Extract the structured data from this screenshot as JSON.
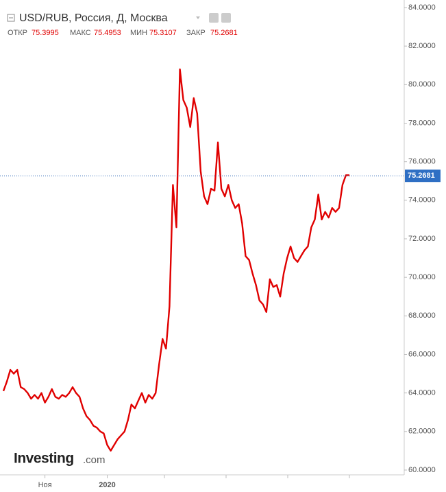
{
  "header": {
    "title": "USD/RUB, Россия, Д, Москва",
    "open_label": "ОТКР",
    "open": "75.3995",
    "high_label": "МАКС",
    "high": "75.4953",
    "low_label": "МИН",
    "low": "75.3107",
    "close_label": "ЗАКР",
    "close": "75.2681"
  },
  "logo": {
    "brand": "Investing",
    "suffix": ".com"
  },
  "chart_data": {
    "type": "line",
    "categories": [
      null,
      null,
      null,
      null,
      null,
      null,
      null,
      null,
      null,
      null,
      null,
      null,
      "Ноя",
      null,
      null,
      null,
      null,
      null,
      null,
      null,
      null,
      null,
      null,
      null,
      null,
      null,
      null,
      null,
      null,
      null,
      "2020",
      null,
      null,
      null,
      null,
      null,
      null,
      null,
      null,
      null,
      null,
      null,
      null,
      null,
      null,
      null,
      null,
      null,
      null,
      null,
      null,
      null,
      null,
      null,
      null,
      null,
      null,
      null,
      null,
      null,
      null,
      null,
      null,
      null,
      null,
      null,
      null,
      null,
      null,
      null,
      null,
      null,
      null,
      null,
      null,
      null,
      null,
      null,
      null,
      null,
      null,
      null,
      null,
      null,
      null,
      null,
      null,
      null,
      null,
      null,
      null,
      null,
      null,
      null,
      null,
      null,
      null,
      null,
      null,
      null,
      null
    ],
    "series": [
      {
        "name": "USD/RUB",
        "color": "#e00000",
        "values": [
          64.1,
          64.6,
          65.2,
          65.0,
          65.2,
          64.3,
          64.2,
          64.0,
          63.7,
          63.9,
          63.7,
          64.0,
          63.5,
          63.8,
          64.2,
          63.8,
          63.7,
          63.9,
          63.8,
          64.0,
          64.3,
          64.0,
          63.8,
          63.2,
          62.8,
          62.6,
          62.3,
          62.2,
          62.0,
          61.9,
          61.3,
          61.0,
          61.3,
          61.6,
          61.8,
          62.0,
          62.6,
          63.4,
          63.2,
          63.6,
          64.0,
          63.5,
          63.9,
          63.7,
          64.0,
          65.5,
          66.8,
          66.3,
          68.5,
          74.8,
          72.6,
          80.8,
          79.2,
          78.8,
          77.8,
          79.3,
          78.5,
          75.5,
          74.2,
          73.8,
          74.6,
          74.5,
          77.0,
          74.6,
          74.2,
          74.8,
          74.0,
          73.6,
          73.8,
          72.8,
          71.1,
          70.9,
          70.2,
          69.6,
          68.8,
          68.6,
          68.2,
          69.9,
          69.5,
          69.6,
          69.0,
          70.2,
          71.0,
          71.6,
          71.0,
          70.8,
          71.1,
          71.4,
          71.6,
          72.6,
          73.0,
          74.3,
          73.0,
          73.4,
          73.1,
          73.6,
          73.4,
          73.6,
          74.8,
          75.3,
          75.3
        ]
      }
    ],
    "current_price": 75.2681,
    "ylim": [
      60,
      84
    ],
    "yticks": [
      {
        "value": 60,
        "label": "60.0000"
      },
      {
        "value": 62,
        "label": "62.0000"
      },
      {
        "value": 64,
        "label": "64.0000"
      },
      {
        "value": 66,
        "label": "66.0000"
      },
      {
        "value": 68,
        "label": "68.0000"
      },
      {
        "value": 70,
        "label": "70.0000"
      },
      {
        "value": 72,
        "label": "72.0000"
      },
      {
        "value": 74,
        "label": "74.0000"
      },
      {
        "value": 76,
        "label": "76.0000"
      },
      {
        "value": 78,
        "label": "78.0000"
      },
      {
        "value": 80,
        "label": "80.0000"
      },
      {
        "value": 82,
        "label": "82.0000"
      },
      {
        "value": 84,
        "label": "84.0000"
      }
    ],
    "grid": false
  }
}
